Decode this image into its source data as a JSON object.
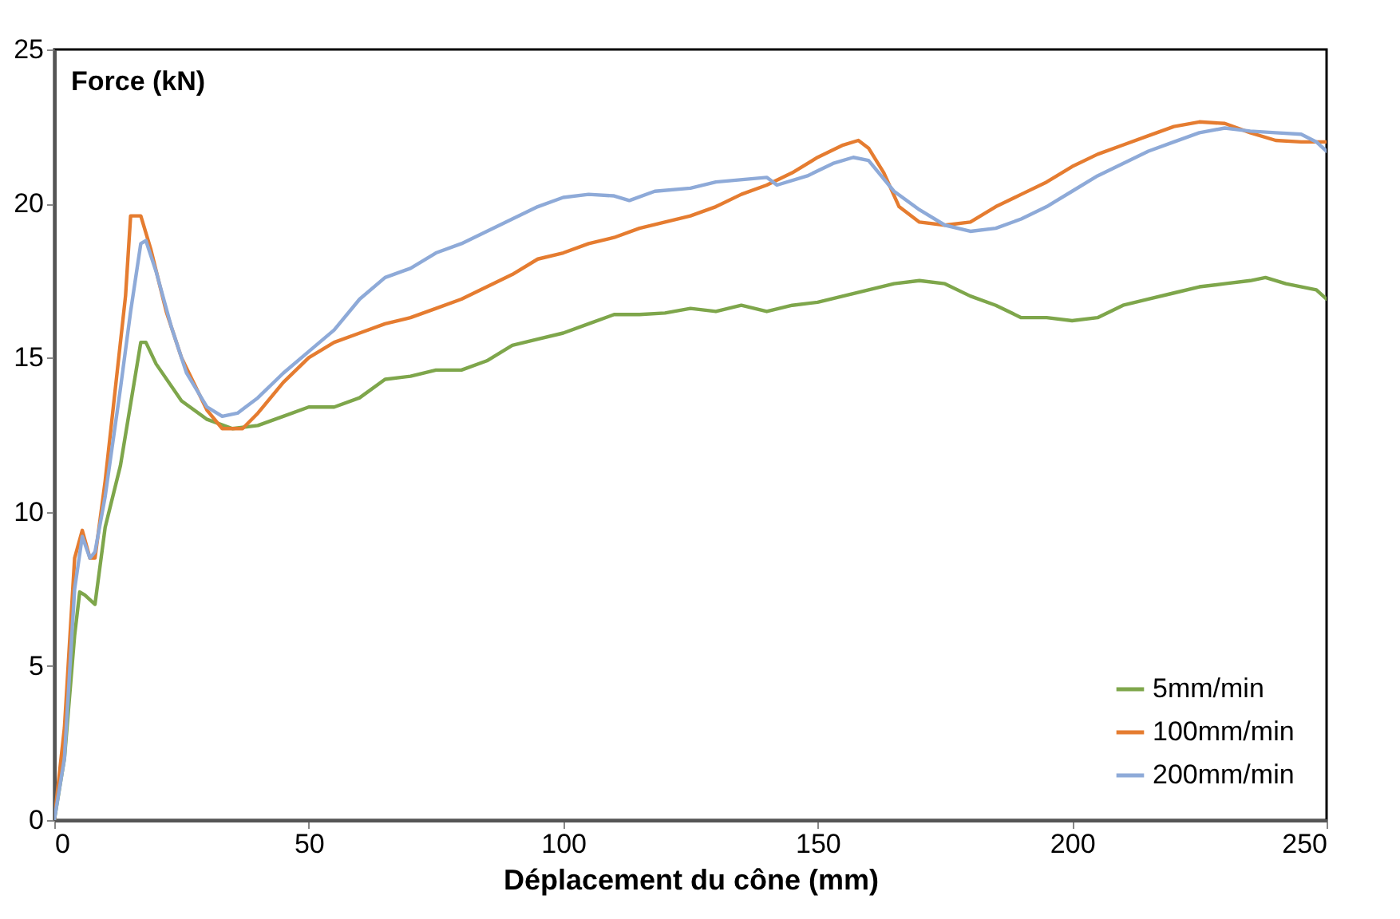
{
  "chart_data": {
    "type": "line",
    "xlabel": "Déplacement du cône (mm)",
    "ylabel": "Force (kN)",
    "xlim": [
      0,
      250
    ],
    "xticks": [
      0,
      50,
      100,
      150,
      200,
      250
    ],
    "ylim": [
      0,
      25
    ],
    "yticks": [
      0,
      5,
      10,
      15,
      20,
      25
    ],
    "grid": false,
    "legend": "bottom right",
    "marker": "none",
    "line_style": "solid",
    "series": [
      {
        "name": "5mm/min",
        "color": "#7ea64b",
        "x": [
          0,
          2,
          4,
          5,
          6,
          8,
          10,
          13,
          15,
          17,
          18,
          20,
          25,
          30,
          35,
          40,
          45,
          50,
          55,
          60,
          65,
          70,
          75,
          80,
          85,
          90,
          95,
          100,
          105,
          110,
          115,
          120,
          125,
          130,
          135,
          140,
          145,
          150,
          155,
          160,
          165,
          170,
          175,
          180,
          185,
          190,
          195,
          200,
          205,
          210,
          215,
          220,
          225,
          230,
          235,
          238,
          242,
          248,
          250
        ],
        "values": [
          0,
          2,
          6,
          7.4,
          7.3,
          7.0,
          9.5,
          11.5,
          13.5,
          15.5,
          15.5,
          14.8,
          13.6,
          13.0,
          12.7,
          12.8,
          13.1,
          13.4,
          13.4,
          13.7,
          14.3,
          14.4,
          14.6,
          14.6,
          14.9,
          15.4,
          15.6,
          15.8,
          16.1,
          16.4,
          16.4,
          16.45,
          16.6,
          16.5,
          16.7,
          16.5,
          16.7,
          16.8,
          17.0,
          17.2,
          17.4,
          17.5,
          17.4,
          17.0,
          16.7,
          16.3,
          16.3,
          16.2,
          16.3,
          16.7,
          16.9,
          17.1,
          17.3,
          17.4,
          17.5,
          17.6,
          17.4,
          17.2,
          16.9
        ]
      },
      {
        "name": "100mm/min",
        "color": "#e57c30",
        "x": [
          0,
          2,
          4,
          5.5,
          7,
          8,
          10,
          12,
          14,
          15,
          17,
          19,
          22,
          25,
          30,
          33,
          37,
          40,
          45,
          50,
          55,
          60,
          65,
          70,
          75,
          80,
          85,
          90,
          95,
          100,
          105,
          110,
          115,
          120,
          125,
          130,
          135,
          140,
          145,
          150,
          155,
          158,
          160,
          163,
          166,
          170,
          175,
          180,
          185,
          190,
          195,
          200,
          205,
          210,
          215,
          220,
          225,
          230,
          235,
          240,
          245,
          250
        ],
        "values": [
          0,
          3,
          8.5,
          9.4,
          8.5,
          8.5,
          11,
          14,
          17,
          19.6,
          19.6,
          18.5,
          16.5,
          15,
          13.3,
          12.7,
          12.7,
          13.2,
          14.2,
          15,
          15.5,
          15.8,
          16.1,
          16.3,
          16.6,
          16.9,
          17.3,
          17.7,
          18.2,
          18.4,
          18.7,
          18.9,
          19.2,
          19.4,
          19.6,
          19.9,
          20.3,
          20.6,
          21.0,
          21.5,
          21.9,
          22.05,
          21.8,
          21.0,
          19.9,
          19.4,
          19.3,
          19.4,
          19.9,
          20.3,
          20.7,
          21.2,
          21.6,
          21.9,
          22.2,
          22.5,
          22.65,
          22.6,
          22.3,
          22.05,
          22.0,
          22.0
        ]
      },
      {
        "name": "200mm/min",
        "color": "#8eaad8",
        "x": [
          0,
          2,
          4,
          5.5,
          7,
          8,
          10,
          13,
          15,
          17,
          18,
          20,
          23,
          26,
          30,
          33,
          36,
          40,
          45,
          50,
          55,
          60,
          65,
          70,
          75,
          80,
          85,
          90,
          95,
          100,
          105,
          110,
          113,
          118,
          125,
          130,
          140,
          142,
          148,
          153,
          157,
          160,
          165,
          170,
          175,
          180,
          185,
          190,
          195,
          200,
          205,
          210,
          215,
          220,
          225,
          230,
          235,
          240,
          245,
          248,
          250
        ],
        "values": [
          0,
          2,
          7.5,
          9.2,
          8.5,
          8.7,
          10.5,
          14,
          16.5,
          18.7,
          18.8,
          17.8,
          16,
          14.5,
          13.4,
          13.1,
          13.2,
          13.7,
          14.5,
          15.2,
          15.9,
          16.9,
          17.6,
          17.9,
          18.4,
          18.7,
          19.1,
          19.5,
          19.9,
          20.2,
          20.3,
          20.25,
          20.1,
          20.4,
          20.5,
          20.7,
          20.85,
          20.6,
          20.9,
          21.3,
          21.5,
          21.4,
          20.4,
          19.8,
          19.3,
          19.1,
          19.2,
          19.5,
          19.9,
          20.4,
          20.9,
          21.3,
          21.7,
          22.0,
          22.3,
          22.45,
          22.35,
          22.3,
          22.25,
          22.0,
          21.7
        ]
      }
    ]
  }
}
